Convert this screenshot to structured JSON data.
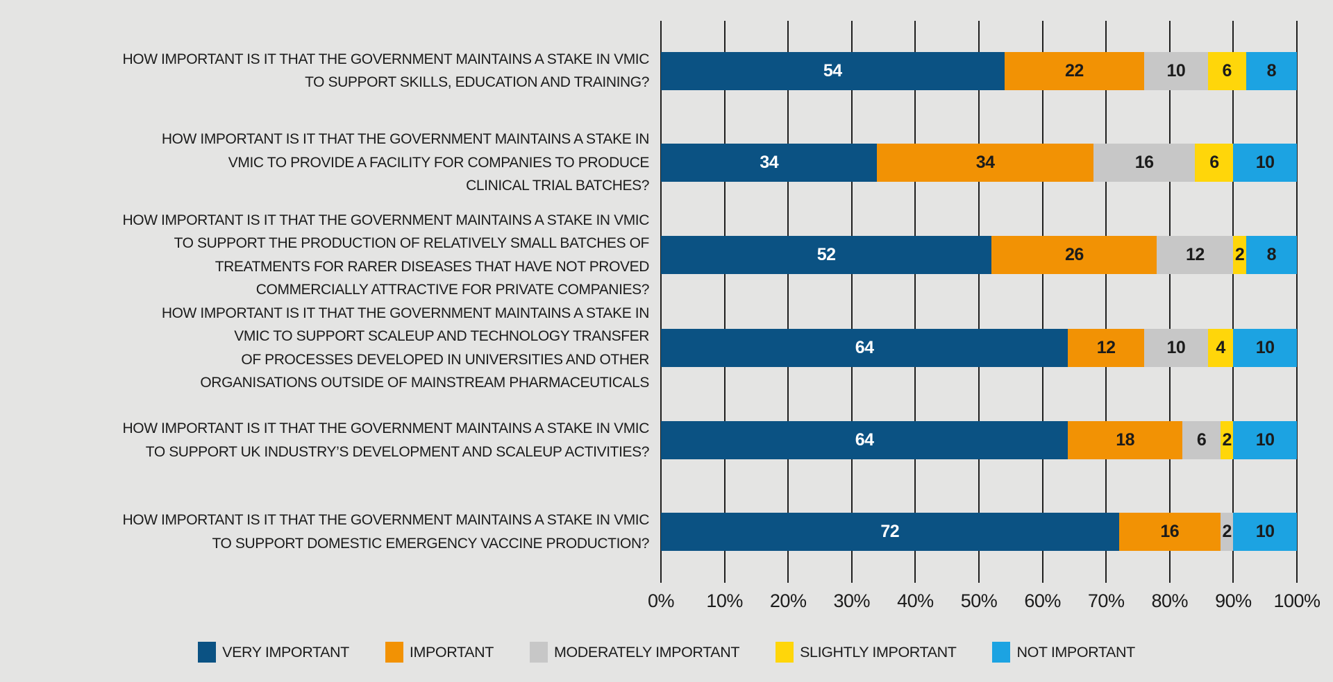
{
  "colors": {
    "background": "#E4E4E3",
    "gridline": "#1E1E1E",
    "text": "#1B1B1B"
  },
  "chart_data": {
    "type": "bar",
    "orientation": "horizontal",
    "stacked": true,
    "grid": "vertical",
    "legend_position": "bottom",
    "xlim": [
      0,
      100
    ],
    "x_ticks": [
      "0%",
      "10%",
      "20%",
      "30%",
      "40%",
      "50%",
      "60%",
      "70%",
      "80%",
      "90%",
      "100%"
    ],
    "categories": [
      {
        "label_lines": [
          "HOW IMPORTANT IS IT THAT THE GOVERNMENT MAINTAINS A STAKE IN VMIC",
          "TO SUPPORT SKILLS, EDUCATION AND TRAINING?"
        ]
      },
      {
        "label_lines": [
          "HOW IMPORTANT IS IT THAT THE GOVERNMENT MAINTAINS A STAKE IN",
          "VMIC TO PROVIDE A FACILITY FOR COMPANIES TO PRODUCE",
          "CLINICAL TRIAL BATCHES?"
        ]
      },
      {
        "label_lines": [
          "HOW IMPORTANT IS IT THAT THE GOVERNMENT MAINTAINS A STAKE IN VMIC",
          "TO SUPPORT THE PRODUCTION OF RELATIVELY SMALL BATCHES OF",
          "TREATMENTS FOR RARER DISEASES THAT HAVE NOT PROVED",
          "COMMERCIALLY ATTRACTIVE FOR PRIVATE COMPANIES?"
        ]
      },
      {
        "label_lines": [
          "HOW IMPORTANT IS IT THAT THE GOVERNMENT MAINTAINS A STAKE IN",
          "VMIC TO SUPPORT SCALEUP AND TECHNOLOGY TRANSFER",
          "OF PROCESSES DEVELOPED IN UNIVERSITIES AND OTHER",
          "ORGANISATIONS OUTSIDE OF MAINSTREAM PHARMACEUTICALS"
        ]
      },
      {
        "label_lines": [
          "HOW IMPORTANT IS IT THAT THE GOVERNMENT MAINTAINS A STAKE IN VMIC",
          "TO SUPPORT UK INDUSTRY’S DEVELOPMENT AND SCALEUP ACTIVITIES?"
        ]
      },
      {
        "label_lines": [
          "HOW IMPORTANT IS IT THAT THE GOVERNMENT MAINTAINS A STAKE IN VMIC",
          "TO SUPPORT DOMESTIC EMERGENCY VACCINE PRODUCTION?"
        ]
      }
    ],
    "series": [
      {
        "name": "VERY IMPORTANT",
        "color": "#0B5283",
        "value_color": "#FFFFFF",
        "values": [
          54,
          34,
          52,
          64,
          64,
          72
        ]
      },
      {
        "name": "IMPORTANT",
        "color": "#F29204",
        "value_color": "#1B1B1B",
        "values": [
          22,
          34,
          26,
          12,
          18,
          16
        ]
      },
      {
        "name": "MODERATELY IMPORTANT",
        "color": "#C7C7C7",
        "value_color": "#1B1B1B",
        "values": [
          10,
          16,
          12,
          10,
          6,
          2
        ]
      },
      {
        "name": "SLIGHTLY IMPORTANT",
        "color": "#FFD60A",
        "value_color": "#1B1B1B",
        "values": [
          6,
          6,
          2,
          4,
          2,
          0
        ]
      },
      {
        "name": "NOT IMPORTANT",
        "color": "#1CA3E2",
        "value_color": "#1B1B1B",
        "values": [
          8,
          10,
          8,
          10,
          10,
          10
        ]
      }
    ]
  }
}
